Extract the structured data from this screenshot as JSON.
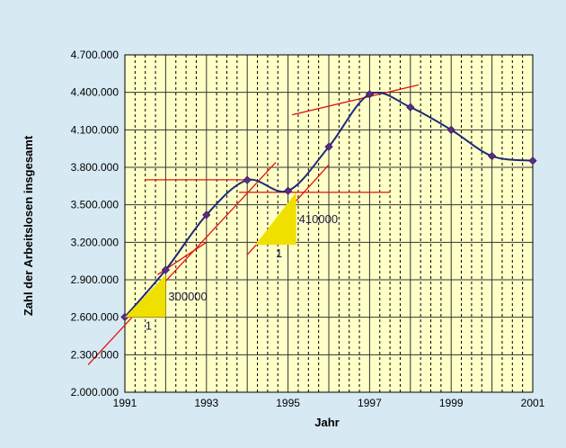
{
  "chart_data": {
    "type": "line",
    "xlabel": "Jahr",
    "ylabel": "Zahl der Arbeitslosen insgesamt",
    "x_ticks": [
      "1991",
      "1993",
      "1995",
      "1997",
      "1999",
      "2001"
    ],
    "y_ticks": [
      "2.000.000",
      "2.300.000",
      "2.600.000",
      "2.900.000",
      "3.200.000",
      "3.500.000",
      "3.800.000",
      "4.100.000",
      "4.400.000",
      "4.700.000"
    ],
    "xlim": [
      1991,
      2001
    ],
    "ylim": [
      2000000,
      4700000
    ],
    "grid": {
      "vertical_major_step": 1,
      "vertical_minor_step": 0.25,
      "horizontal_step": 300000
    },
    "series": [
      {
        "x": [
          1991,
          1992,
          1993,
          1994,
          1995,
          1996,
          1997,
          1998,
          1999,
          2000,
          2001
        ],
        "y": [
          2602000,
          2979000,
          3419000,
          3698000,
          3612000,
          3965000,
          4385000,
          4281000,
          4100000,
          3890000,
          3853000
        ]
      }
    ],
    "annotations": {
      "tangent_lines": [
        {
          "x": [
            1990.1,
            1994.7
          ],
          "y": [
            2220000,
            3840000
          ]
        },
        {
          "x": [
            1991.8,
            1993.0
          ],
          "y": [
            2940000,
            3200000
          ]
        },
        {
          "x": [
            1991.5,
            1994.0
          ],
          "y": [
            3700000,
            3700000
          ]
        },
        {
          "x": [
            1993.8,
            1997.5
          ],
          "y": [
            3600000,
            3600000
          ]
        },
        {
          "x": [
            1994.0,
            1996.0
          ],
          "y": [
            3100000,
            3820000
          ]
        },
        {
          "x": [
            1995.1,
            1998.2
          ],
          "y": [
            4220000,
            4460000
          ]
        }
      ],
      "slope_triangles": [
        {
          "x": [
            1991,
            1992,
            1992
          ],
          "y": [
            2600000,
            2600000,
            2940000
          ],
          "label": "300000",
          "run_label": "1"
        },
        {
          "x": [
            1994.2,
            1995.2,
            1995.2
          ],
          "y": [
            3180000,
            3180000,
            3600000
          ],
          "label": "410000",
          "run_label": "1"
        }
      ]
    },
    "colors": {
      "background": "#d7e9f3",
      "plot_area": "#ffffc8",
      "line": "#1e2a7a",
      "marker": "#5b2a8a",
      "tangent": "#e01010",
      "triangle": "#f0e000",
      "grid_major": "#333333",
      "grid_minor": "#000000"
    }
  }
}
